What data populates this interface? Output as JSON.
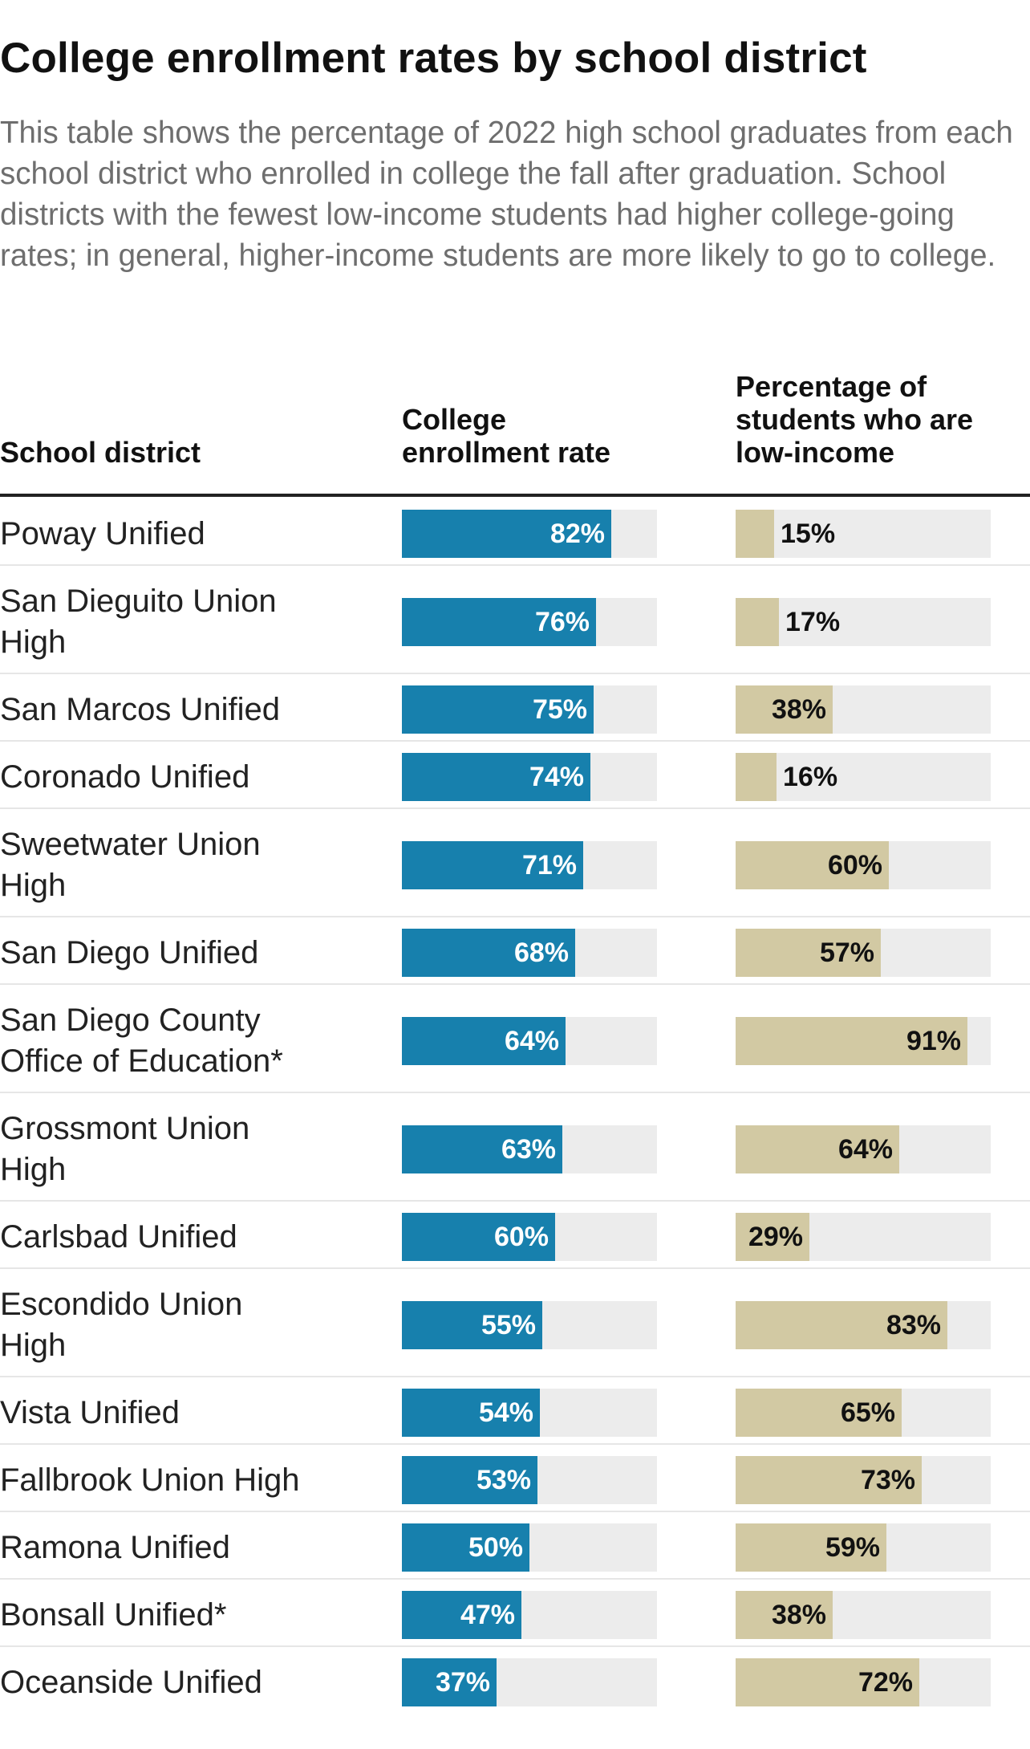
{
  "title": "College enrollment rates by school district",
  "subtitle": "This table shows the percentage of 2022 high school graduates from each school district who enrolled in college the fall after graduation. School districts with the fewest low-income students had higher college-going rates; in general, higher-income students are more likely to go to college.",
  "columns": {
    "district": "School district",
    "rate_line1": "College",
    "rate_line2": "enrollment rate",
    "income_line1": "Percentage of",
    "income_line2": "students who are",
    "income_line3": "low-income"
  },
  "colors": {
    "enrollment_bar": "#1780ad",
    "low_income_bar": "#d2c9a3",
    "track": "#ececec"
  },
  "chart_data": {
    "type": "table",
    "title": "College enrollment rates by school district",
    "xlim": [
      0,
      100
    ],
    "unit": "%",
    "series": [
      {
        "name": "College enrollment rate",
        "values": [
          82,
          76,
          75,
          74,
          71,
          68,
          64,
          63,
          60,
          55,
          54,
          53,
          50,
          47,
          37
        ]
      },
      {
        "name": "Percentage of students who are low-income",
        "values": [
          15,
          17,
          38,
          16,
          60,
          57,
          91,
          64,
          29,
          83,
          65,
          73,
          59,
          38,
          72
        ]
      }
    ],
    "rows": [
      {
        "district": [
          "Poway Unified"
        ],
        "rate": 82,
        "rate_label": "82%",
        "income": 15,
        "income_label": "15%"
      },
      {
        "district": [
          "San Dieguito Union",
          "High"
        ],
        "rate": 76,
        "rate_label": "76%",
        "income": 17,
        "income_label": "17%"
      },
      {
        "district": [
          "San Marcos Unified"
        ],
        "rate": 75,
        "rate_label": "75%",
        "income": 38,
        "income_label": "38%"
      },
      {
        "district": [
          "Coronado Unified"
        ],
        "rate": 74,
        "rate_label": "74%",
        "income": 16,
        "income_label": "16%"
      },
      {
        "district": [
          "Sweetwater Union",
          "High"
        ],
        "rate": 71,
        "rate_label": "71%",
        "income": 60,
        "income_label": "60%"
      },
      {
        "district": [
          "San Diego Unified"
        ],
        "rate": 68,
        "rate_label": "68%",
        "income": 57,
        "income_label": "57%"
      },
      {
        "district": [
          "San Diego County",
          "Office of Education*"
        ],
        "rate": 64,
        "rate_label": "64%",
        "income": 91,
        "income_label": "91%"
      },
      {
        "district": [
          "Grossmont Union",
          "High"
        ],
        "rate": 63,
        "rate_label": "63%",
        "income": 64,
        "income_label": "64%"
      },
      {
        "district": [
          "Carlsbad Unified"
        ],
        "rate": 60,
        "rate_label": "60%",
        "income": 29,
        "income_label": "29%"
      },
      {
        "district": [
          "Escondido Union",
          "High"
        ],
        "rate": 55,
        "rate_label": "55%",
        "income": 83,
        "income_label": "83%"
      },
      {
        "district": [
          "Vista Unified"
        ],
        "rate": 54,
        "rate_label": "54%",
        "income": 65,
        "income_label": "65%"
      },
      {
        "district": [
          "Fallbrook Union High"
        ],
        "rate": 53,
        "rate_label": "53%",
        "income": 73,
        "income_label": "73%"
      },
      {
        "district": [
          "Ramona Unified"
        ],
        "rate": 50,
        "rate_label": "50%",
        "income": 59,
        "income_label": "59%"
      },
      {
        "district": [
          "Bonsall Unified*"
        ],
        "rate": 47,
        "rate_label": "47%",
        "income": 38,
        "income_label": "38%"
      },
      {
        "district": [
          "Oceanside Unified"
        ],
        "rate": 37,
        "rate_label": "37%",
        "income": 72,
        "income_label": "72%"
      }
    ]
  }
}
